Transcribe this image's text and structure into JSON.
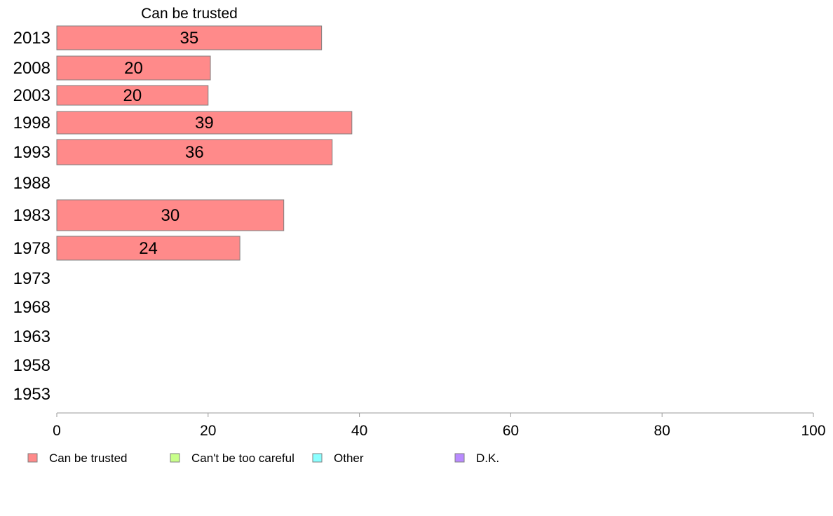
{
  "chart_data": {
    "type": "bar",
    "orientation": "horizontal",
    "title": "Can be trusted",
    "categories": [
      "2013",
      "2008",
      "2003",
      "1998",
      "1993",
      "1988",
      "1983",
      "1978",
      "1973",
      "1968",
      "1963",
      "1958",
      "1953"
    ],
    "series": [
      {
        "name": "Can be trusted",
        "color": "#ff8a8a",
        "values": [
          35,
          20.3,
          20,
          39,
          36.4,
          null,
          30,
          24.2,
          null,
          null,
          null,
          null,
          null
        ],
        "labels": [
          "35",
          "20",
          "20",
          "39",
          "36",
          "",
          "30",
          "24",
          "",
          "",
          "",
          "",
          ""
        ]
      }
    ],
    "xlim": [
      0,
      100
    ],
    "xticks": [
      0,
      20,
      40,
      60,
      80,
      100
    ],
    "xlabel": "",
    "ylabel": "",
    "grid": false,
    "legend_position": "bottom",
    "legend": [
      {
        "label": "Can be trusted",
        "color": "#ff8a8a"
      },
      {
        "label": "Can't be too careful",
        "color": "#c8ff8a"
      },
      {
        "label": "Other",
        "color": "#8affff"
      },
      {
        "label": "D.K.",
        "color": "#b98aff"
      }
    ]
  }
}
